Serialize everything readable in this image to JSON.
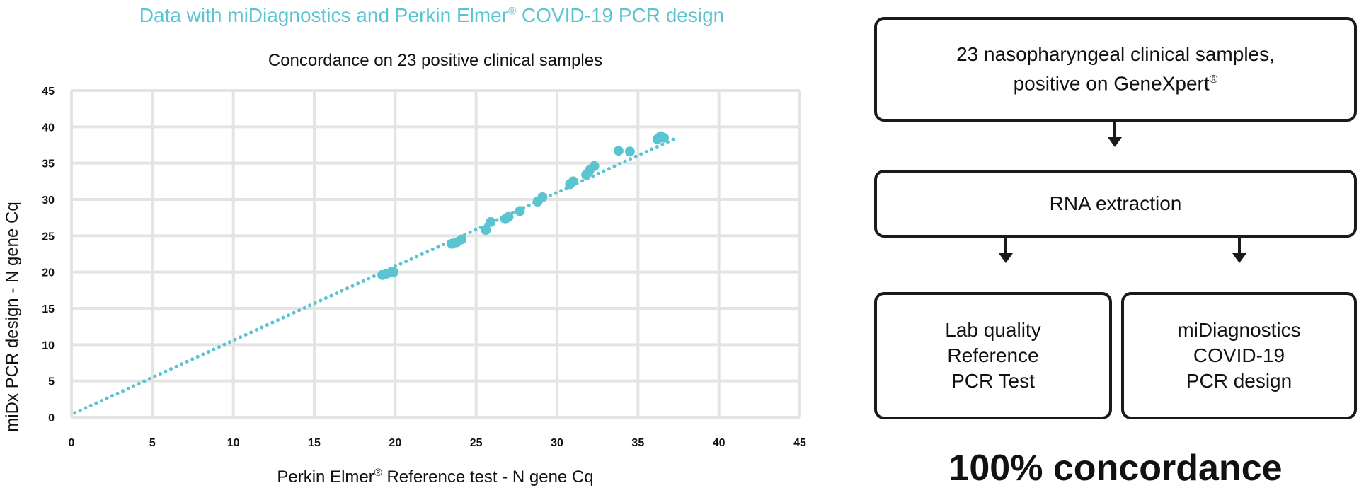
{
  "header": {
    "title_pre": "Data with miDiagnostics and Perkin Elmer",
    "title_sup": "®",
    "title_post": " COVID-19 PCR design"
  },
  "colors": {
    "accent": "#5bc4d1",
    "grid": "#e4e4e4",
    "text": "#111111"
  },
  "chart_data": {
    "type": "scatter",
    "title": "Concordance on 23 positive clinical samples",
    "xlabel_pre": "Perkin Elmer",
    "xlabel_sup": "®",
    "xlabel_post": " Reference test - N gene Cq",
    "ylabel": "miDx PCR design - N gene Cq",
    "xlim": [
      0,
      45
    ],
    "ylim": [
      0,
      45
    ],
    "xticks": [
      0,
      5,
      10,
      15,
      20,
      25,
      30,
      35,
      40,
      45
    ],
    "yticks": [
      0,
      5,
      10,
      15,
      20,
      25,
      30,
      35,
      40,
      45
    ],
    "grid": true,
    "points": [
      {
        "x": 19.2,
        "y": 19.6
      },
      {
        "x": 19.5,
        "y": 19.8
      },
      {
        "x": 19.9,
        "y": 20.0
      },
      {
        "x": 23.5,
        "y": 23.9
      },
      {
        "x": 23.8,
        "y": 24.1
      },
      {
        "x": 24.1,
        "y": 24.5
      },
      {
        "x": 25.6,
        "y": 25.8
      },
      {
        "x": 25.9,
        "y": 26.9
      },
      {
        "x": 26.8,
        "y": 27.3
      },
      {
        "x": 27.0,
        "y": 27.6
      },
      {
        "x": 27.7,
        "y": 28.4
      },
      {
        "x": 28.8,
        "y": 29.7
      },
      {
        "x": 29.1,
        "y": 30.3
      },
      {
        "x": 30.8,
        "y": 32.1
      },
      {
        "x": 31.0,
        "y": 32.5
      },
      {
        "x": 31.8,
        "y": 33.4
      },
      {
        "x": 32.0,
        "y": 34.0
      },
      {
        "x": 32.3,
        "y": 34.6
      },
      {
        "x": 33.8,
        "y": 36.7
      },
      {
        "x": 34.5,
        "y": 36.6
      },
      {
        "x": 36.2,
        "y": 38.3
      },
      {
        "x": 36.4,
        "y": 38.7
      },
      {
        "x": 36.6,
        "y": 38.5
      }
    ],
    "trendline": {
      "x": [
        0.2,
        37.2
      ],
      "y": [
        0.6,
        38.3
      ]
    }
  },
  "flow": {
    "samples_line1": "23 nasopharyngeal clinical samples,",
    "samples_line2": "positive on GeneXpert",
    "samples_sup": "®",
    "rna": "RNA extraction",
    "lab_line1": "Lab quality",
    "lab_line2": "Reference",
    "lab_line3": "PCR Test",
    "midx_line1": "miDiagnostics",
    "midx_line2": "COVID-19",
    "midx_line3": "PCR design"
  },
  "result": "100% concordance"
}
